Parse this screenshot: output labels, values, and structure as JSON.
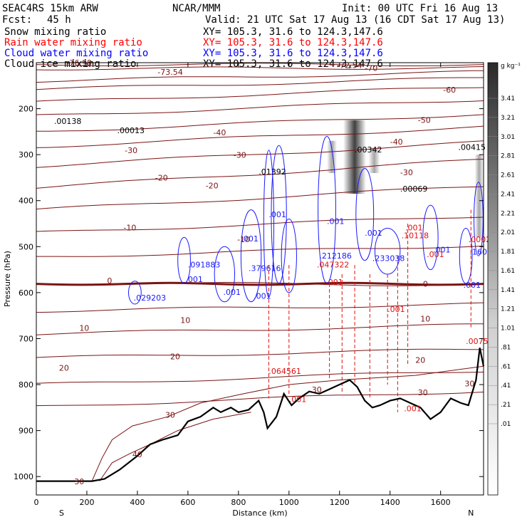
{
  "header": {
    "model": "SEAC4RS 15km ARW",
    "center": "NCAR/MMM",
    "init": "Init: 00 UTC Fri 16 Aug 13",
    "fcst_label": "Fcst:",
    "fcst_value": "45 h",
    "valid": "Valid: 21 UTC Sat 17 Aug 13 (16 CDT Sat 17 Aug 13)"
  },
  "fields": [
    {
      "name": "Snow mixing ratio",
      "xy": "XY= 105.3, 31.6 to 124.3,147.6",
      "color": "#000000"
    },
    {
      "name": "Rain water mixing ratio",
      "xy": "XY= 105.3, 31.6 to 124.3,147.6",
      "color": "#ff0000"
    },
    {
      "name": "Cloud water mixing ratio",
      "xy": "XY= 105.3, 31.6 to 124.3,147.6",
      "color": "#0000ff"
    },
    {
      "name": "Cloud ice mixing ratio",
      "xy": "XY= 105.3, 31.6 to 124.3,147.6",
      "color": "#000000"
    }
  ],
  "chart_data": {
    "type": "cross-section contour",
    "xlabel": "Distance (km)",
    "ylabel": "Pressure (hPa)",
    "x_ticks": [
      0,
      200,
      400,
      600,
      800,
      1000,
      1200,
      1400,
      1600
    ],
    "y_ticks": [
      200,
      300,
      400,
      500,
      600,
      700,
      800,
      900,
      1000
    ],
    "xlim": [
      0,
      1770
    ],
    "ylim": [
      1040,
      100
    ],
    "end_labels": {
      "left": "S",
      "right": "N"
    },
    "colorbar": {
      "unit": "g kg⁻¹",
      "labels": [
        "3.41",
        "3.21",
        "3.01",
        "2.81",
        "2.61",
        "2.41",
        "2.21",
        "2.01",
        "1.81",
        "1.61",
        "1.41",
        "1.21",
        "1.01",
        ".81",
        ".61",
        ".41",
        ".21",
        ".01"
      ]
    },
    "temperature_contours": [
      {
        "label": "-76.98",
        "x": 120,
        "p": 106
      },
      {
        "label": "-73.54",
        "x": 480,
        "p": 126
      },
      {
        "label": "-72.54",
        "x": 1190,
        "p": 112
      },
      {
        "label": "-70",
        "x": 1300,
        "p": 118
      },
      {
        "label": "-60",
        "x": 1610,
        "p": 165
      },
      {
        "label": "-50",
        "x": 1510,
        "p": 231
      },
      {
        "label": "-40",
        "x": 700,
        "p": 258
      },
      {
        "label": "-40",
        "x": 1400,
        "p": 278
      },
      {
        "label": "-30",
        "x": 350,
        "p": 297
      },
      {
        "label": "-30",
        "x": 780,
        "p": 307
      },
      {
        "label": "-30",
        "x": 1440,
        "p": 345
      },
      {
        "label": "-20",
        "x": 470,
        "p": 356
      },
      {
        "label": "-20",
        "x": 670,
        "p": 373
      },
      {
        "label": "-10",
        "x": 345,
        "p": 465
      },
      {
        "label": "-10",
        "x": 795,
        "p": 490
      },
      {
        "label": "0",
        "x": 280,
        "p": 580
      },
      {
        "label": "0",
        "x": 1530,
        "p": 587
      },
      {
        "label": "10",
        "x": 170,
        "p": 683
      },
      {
        "label": "10",
        "x": 570,
        "p": 666
      },
      {
        "label": "10",
        "x": 1520,
        "p": 663
      },
      {
        "label": "20",
        "x": 90,
        "p": 770
      },
      {
        "label": "20",
        "x": 530,
        "p": 745
      },
      {
        "label": "20",
        "x": 1500,
        "p": 753
      },
      {
        "label": "30",
        "x": 1090,
        "p": 817
      },
      {
        "label": "30",
        "x": 1510,
        "p": 823
      },
      {
        "label": "30",
        "x": 510,
        "p": 872
      },
      {
        "label": "30",
        "x": 1695,
        "p": 804
      },
      {
        "label": "40",
        "x": 380,
        "p": 958
      },
      {
        "label": "30",
        "x": 150,
        "p": 1017
      }
    ],
    "snow_maxima": [
      {
        "label": ".00138",
        "x": 70,
        "p": 233
      },
      {
        "label": ".00013",
        "x": 320,
        "p": 253
      },
      {
        "label": ".01392",
        "x": 880,
        "p": 343
      },
      {
        "label": ".00342",
        "x": 1260,
        "p": 295
      },
      {
        "label": ".00069",
        "x": 1440,
        "p": 380
      },
      {
        "label": ".00415",
        "x": 1670,
        "p": 290
      }
    ],
    "rain_maxima": [
      {
        "label": ".064561",
        "x": 920,
        "p": 777
      },
      {
        "label": ".047322",
        "x": 1110,
        "p": 545
      },
      {
        "label": ".001",
        "x": 1000,
        "p": 838
      },
      {
        "label": ".001",
        "x": 1390,
        "p": 642
      },
      {
        "label": ".001",
        "x": 1455,
        "p": 858
      },
      {
        "label": ".001",
        "x": 1460,
        "p": 465
      },
      {
        "label": ".10118",
        "x": 1445,
        "p": 482
      },
      {
        "label": ".001",
        "x": 1545,
        "p": 523
      },
      {
        "label": ".0002",
        "x": 1710,
        "p": 490
      },
      {
        "label": ".0075",
        "x": 1700,
        "p": 712
      },
      {
        "label": ".001",
        "x": 1145,
        "p": 583
      }
    ],
    "cloud_water_maxima": [
      {
        "label": ".029203",
        "x": 385,
        "p": 617
      },
      {
        "label": ".001",
        "x": 590,
        "p": 577
      },
      {
        "label": ".001",
        "x": 740,
        "p": 605
      },
      {
        "label": ".001",
        "x": 860,
        "p": 613
      },
      {
        "label": ".091883",
        "x": 600,
        "p": 545
      },
      {
        "label": ".379616",
        "x": 840,
        "p": 553
      },
      {
        "label": ".212186",
        "x": 1120,
        "p": 526
      },
      {
        "label": ".233038",
        "x": 1330,
        "p": 531
      },
      {
        "label": ".001",
        "x": 1150,
        "p": 451
      },
      {
        "label": ".001",
        "x": 1300,
        "p": 476
      },
      {
        "label": ".001",
        "x": 810,
        "p": 489
      },
      {
        "label": ".001",
        "x": 920,
        "p": 436
      },
      {
        "label": ".001",
        "x": 1690,
        "p": 589
      },
      {
        "label": ".1609",
        "x": 1715,
        "p": 517
      },
      {
        "label": ".001",
        "x": 1570,
        "p": 513
      }
    ]
  }
}
